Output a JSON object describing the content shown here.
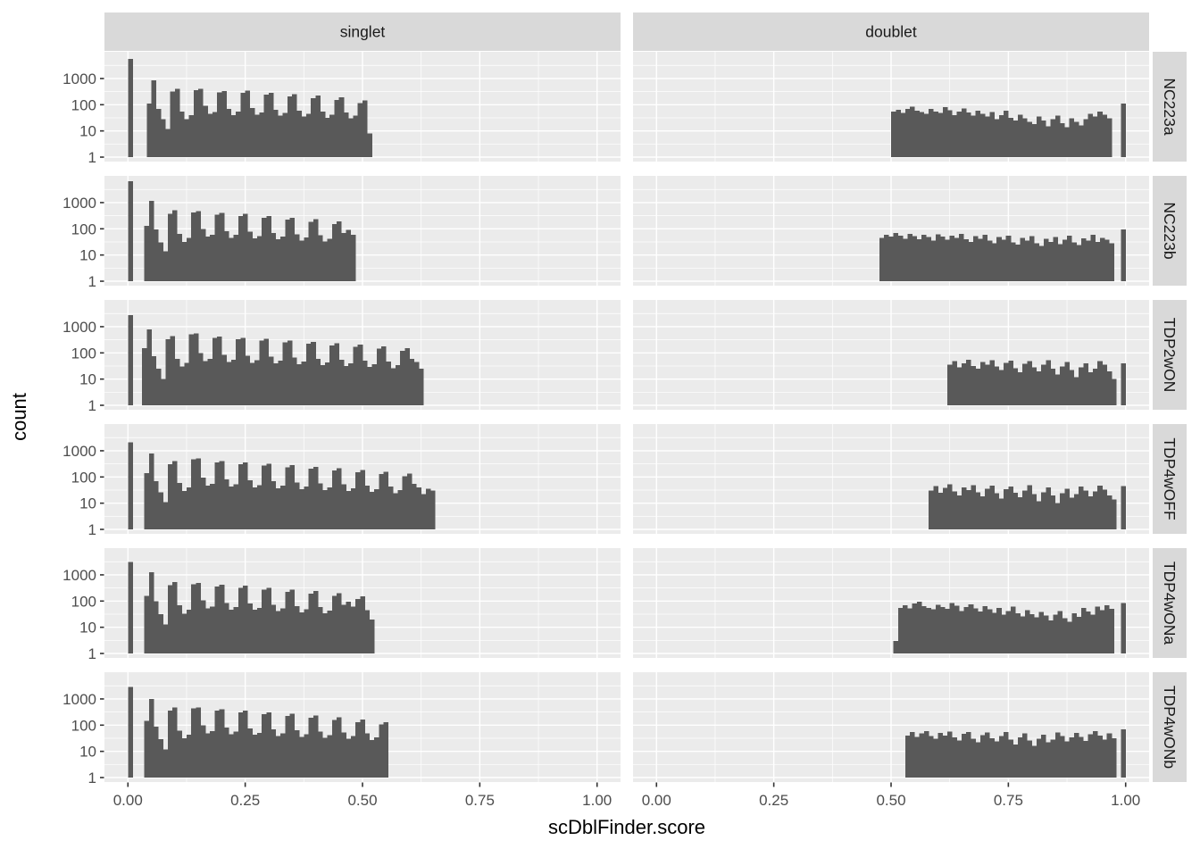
{
  "chart_data": {
    "type": "bar",
    "subtype": "faceted-log-histogram",
    "title": "",
    "xlabel": "scDblFinder.score",
    "ylabel": "count",
    "legend": "none",
    "x_tick_labels": [
      "0.00",
      "0.25",
      "0.50",
      "0.75",
      "1.00"
    ],
    "x_tick_values": [
      0,
      0.25,
      0.5,
      0.75,
      1.0
    ],
    "x_minor_values": [
      0.125,
      0.375,
      0.625,
      0.875
    ],
    "y_tick_labels": [
      "1000",
      "100",
      "10",
      "1"
    ],
    "y_tick_values": [
      1000,
      100,
      10,
      1
    ],
    "y_minor_log10": [
      0.5,
      1.5,
      2.5,
      3.5
    ],
    "y_major_log10": [
      0,
      1,
      2,
      3
    ],
    "y_scale": "log10",
    "xlim": [
      -0.05,
      1.05
    ],
    "ylim_log10": [
      -0.17,
      4.02
    ],
    "binwidth": 0.01,
    "col_facets": [
      "singlet",
      "doublet"
    ],
    "row_facets": [
      "NC223a",
      "NC223b",
      "TDP2wON",
      "TDP4wOFF",
      "TDP4wONa",
      "TDP4wONb"
    ],
    "colors": {
      "bar": "#595959",
      "panel_bg": "#EBEBEB",
      "strip_bg": "#D9D9D9",
      "grid": "#FFFFFF",
      "tick_mark": "#333333",
      "tick_label": "#4D4D4D",
      "strip_text": "#1A1A1A",
      "title_text": "#000000"
    },
    "panels": [
      {
        "row": "NC223a",
        "col": "singlet",
        "start": 0.04,
        "spike_bin": {
          "x": 0.0,
          "count": 5500
        },
        "counts": [
          110,
          850,
          70,
          28,
          12,
          320,
          400,
          55,
          28,
          40,
          360,
          410,
          90,
          45,
          52,
          300,
          330,
          70,
          40,
          55,
          285,
          340,
          75,
          42,
          50,
          240,
          285,
          65,
          38,
          48,
          205,
          250,
          60,
          35,
          45,
          175,
          220,
          55,
          32,
          42,
          150,
          190,
          50,
          30,
          38,
          115,
          145,
          8
        ]
      },
      {
        "row": "NC223a",
        "col": "doublet",
        "start": 0.5,
        "spike_bin": {
          "x": 0.99,
          "count": 110
        },
        "counts": [
          55,
          65,
          48,
          70,
          85,
          60,
          52,
          45,
          68,
          55,
          48,
          80,
          62,
          40,
          55,
          72,
          50,
          38,
          60,
          45,
          35,
          52,
          28,
          40,
          58,
          32,
          25,
          42,
          30,
          22,
          18,
          35,
          25,
          15,
          28,
          38,
          20,
          14,
          30,
          22,
          16,
          28,
          45,
          35,
          55,
          42,
          30
        ]
      },
      {
        "row": "NC223b",
        "col": "singlet",
        "start": 0.035,
        "spike_bin": {
          "x": 0.0,
          "count": 6500
        },
        "counts": [
          130,
          1150,
          95,
          30,
          14,
          380,
          520,
          65,
          32,
          45,
          420,
          480,
          100,
          50,
          60,
          350,
          400,
          80,
          45,
          58,
          310,
          370,
          78,
          44,
          52,
          260,
          310,
          70,
          40,
          50,
          220,
          265,
          62,
          36,
          46,
          185,
          230,
          56,
          33,
          42,
          150,
          190,
          70,
          90,
          60
        ]
      },
      {
        "row": "NC223b",
        "col": "doublet",
        "start": 0.475,
        "spike_bin": {
          "x": 0.99,
          "count": 95
        },
        "counts": [
          45,
          60,
          50,
          70,
          55,
          42,
          65,
          52,
          40,
          58,
          48,
          36,
          62,
          50,
          38,
          55,
          45,
          65,
          40,
          32,
          52,
          42,
          60,
          35,
          28,
          48,
          38,
          55,
          30,
          25,
          45,
          35,
          52,
          28,
          22,
          42,
          32,
          48,
          26,
          38,
          55,
          30,
          24,
          44,
          36,
          58,
          32,
          45,
          38,
          28
        ]
      },
      {
        "row": "TDP2wON",
        "col": "singlet",
        "start": 0.03,
        "spike_bin": {
          "x": 0.0,
          "count": 2800
        },
        "counts": [
          150,
          800,
          75,
          25,
          10,
          330,
          430,
          60,
          30,
          42,
          520,
          560,
          100,
          48,
          58,
          380,
          420,
          85,
          45,
          55,
          330,
          380,
          78,
          42,
          52,
          290,
          340,
          72,
          40,
          50,
          255,
          300,
          66,
          37,
          47,
          225,
          265,
          60,
          34,
          44,
          195,
          235,
          55,
          31,
          40,
          170,
          205,
          50,
          29,
          37,
          145,
          180,
          46,
          26,
          34,
          120,
          150,
          60,
          45,
          25
        ]
      },
      {
        "row": "TDP2wON",
        "col": "doublet",
        "start": 0.62,
        "spike_bin": {
          "x": 0.99,
          "count": 40
        },
        "counts": [
          35,
          48,
          28,
          40,
          55,
          32,
          25,
          45,
          35,
          52,
          30,
          22,
          42,
          50,
          26,
          18,
          38,
          48,
          28,
          20,
          35,
          52,
          25,
          15,
          30,
          45,
          22,
          12,
          28,
          40,
          18,
          25,
          48,
          35,
          20,
          10
        ]
      },
      {
        "row": "TDP4wOFF",
        "col": "singlet",
        "start": 0.035,
        "spike_bin": {
          "x": 0.0,
          "count": 2100
        },
        "counts": [
          140,
          780,
          70,
          26,
          11,
          310,
          400,
          58,
          29,
          40,
          470,
          510,
          95,
          46,
          55,
          360,
          400,
          80,
          43,
          52,
          310,
          360,
          74,
          40,
          49,
          270,
          320,
          68,
          37,
          46,
          235,
          280,
          62,
          34,
          43,
          205,
          245,
          57,
          31,
          40,
          178,
          215,
          52,
          29,
          37,
          152,
          185,
          47,
          27,
          34,
          130,
          160,
          43,
          24,
          31,
          108,
          135,
          55,
          40,
          22,
          35,
          30
        ]
      },
      {
        "row": "TDP4wOFF",
        "col": "doublet",
        "start": 0.58,
        "spike_bin": {
          "x": 0.99,
          "count": 45
        },
        "counts": [
          30,
          45,
          25,
          38,
          52,
          28,
          20,
          40,
          32,
          48,
          26,
          18,
          36,
          46,
          24,
          15,
          34,
          44,
          25,
          17,
          30,
          48,
          22,
          12,
          26,
          40,
          20,
          10,
          24,
          36,
          16,
          22,
          44,
          30,
          18,
          28,
          46,
          33,
          20,
          14
        ]
      },
      {
        "row": "TDP4wONa",
        "col": "singlet",
        "start": 0.035,
        "spike_bin": {
          "x": 0.0,
          "count": 3100
        },
        "counts": [
          160,
          1250,
          100,
          32,
          13,
          400,
          540,
          68,
          33,
          47,
          440,
          500,
          105,
          52,
          62,
          365,
          415,
          84,
          47,
          60,
          320,
          385,
          80,
          46,
          54,
          270,
          320,
          72,
          42,
          52,
          228,
          275,
          64,
          37,
          48,
          192,
          238,
          58,
          34,
          44,
          158,
          198,
          73,
          94,
          62,
          120,
          150,
          45,
          20
        ]
      },
      {
        "row": "TDP4wONa",
        "col": "doublet",
        "start": 0.505,
        "spike_bin": {
          "x": 0.99,
          "count": 85
        },
        "counts": [
          3,
          55,
          70,
          52,
          80,
          95,
          65,
          55,
          48,
          72,
          58,
          50,
          85,
          66,
          42,
          58,
          76,
          52,
          40,
          64,
          48,
          36,
          55,
          30,
          42,
          62,
          34,
          26,
          45,
          32,
          24,
          38,
          28,
          18,
          30,
          42,
          22,
          16,
          34,
          25,
          55,
          40,
          30,
          62,
          45,
          70,
          50
        ]
      },
      {
        "row": "TDP4wONb",
        "col": "singlet",
        "start": 0.035,
        "spike_bin": {
          "x": 0.0,
          "count": 2900
        },
        "counts": [
          145,
          1000,
          88,
          29,
          12,
          360,
          470,
          62,
          31,
          44,
          430,
          480,
          98,
          49,
          58,
          355,
          405,
          82,
          45,
          56,
          305,
          365,
          76,
          43,
          51,
          262,
          310,
          70,
          39,
          49,
          225,
          268,
          63,
          36,
          45,
          190,
          232,
          57,
          33,
          41,
          160,
          196,
          52,
          30,
          38,
          132,
          165,
          48,
          27,
          34,
          105,
          130
        ]
      },
      {
        "row": "TDP4wONb",
        "col": "doublet",
        "start": 0.53,
        "spike_bin": {
          "x": 0.99,
          "count": 70
        },
        "counts": [
          40,
          55,
          35,
          48,
          60,
          38,
          30,
          50,
          40,
          56,
          34,
          26,
          46,
          54,
          30,
          22,
          42,
          52,
          32,
          24,
          38,
          55,
          28,
          18,
          34,
          48,
          26,
          16,
          30,
          44,
          22,
          28,
          52,
          38,
          24,
          34,
          50,
          36,
          25,
          45,
          58,
          40,
          28,
          48,
          32
        ]
      }
    ]
  }
}
